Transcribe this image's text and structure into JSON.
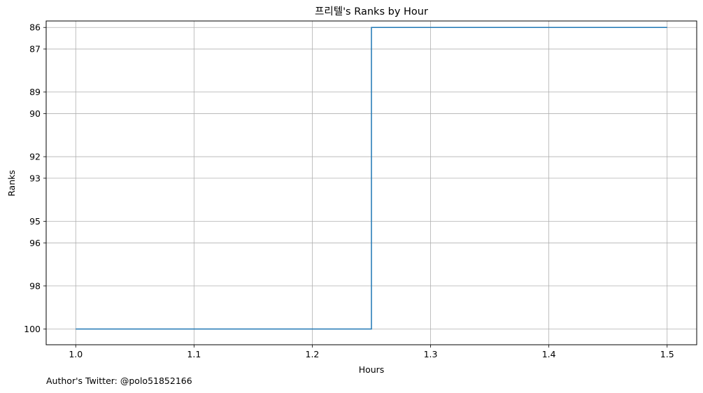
{
  "chart_data": {
    "type": "line",
    "step": "post",
    "title": "프리텔's Ranks by Hour",
    "xlabel": "Hours",
    "ylabel": "Ranks",
    "x": [
      1.0,
      1.25,
      1.5
    ],
    "series": [
      {
        "values": [
          100,
          86,
          86
        ],
        "color": "#1f77b4"
      }
    ],
    "xlim": [
      0.975,
      1.525
    ],
    "ylim": [
      100.73,
      85.7
    ],
    "y_inverted": true,
    "xticks": [
      "1.0",
      "1.1",
      "1.2",
      "1.3",
      "1.4",
      "1.5"
    ],
    "yticks": [
      "86",
      "87",
      "89",
      "90",
      "92",
      "93",
      "95",
      "96",
      "98",
      "100"
    ],
    "grid": true
  },
  "footer": {
    "author": "Author's Twitter: @polo51852166"
  }
}
